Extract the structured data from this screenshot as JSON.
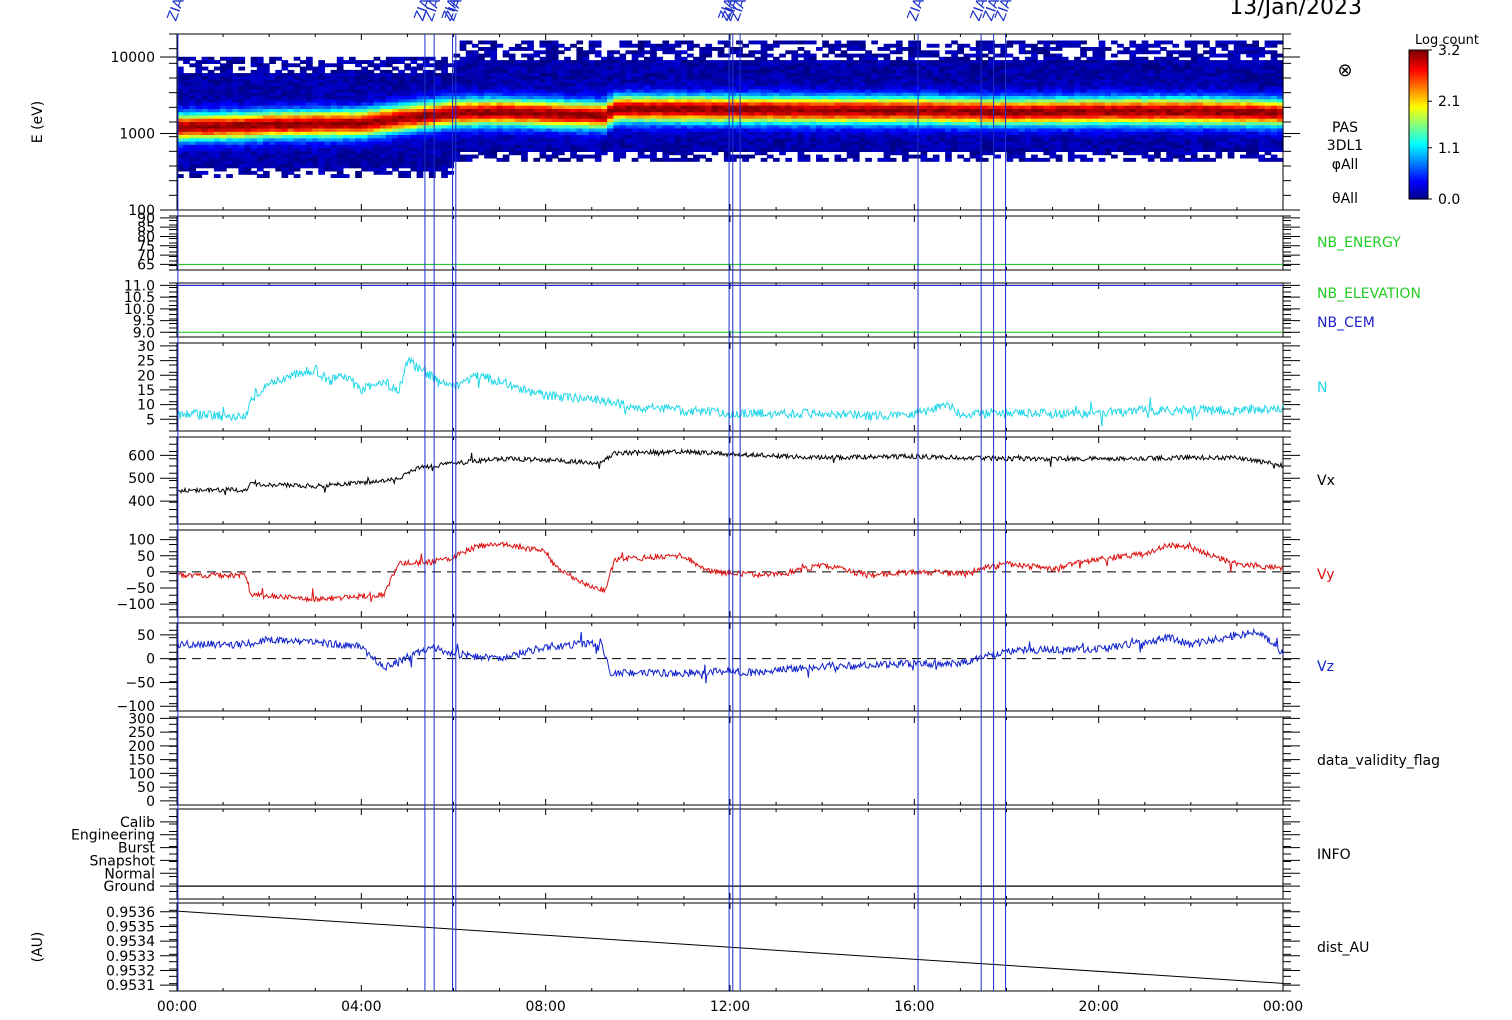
{
  "header": {
    "date": "13/Jan/2023"
  },
  "colorbar": {
    "title": "Log count",
    "ticks": [
      "3.2",
      "2.1",
      "1.1",
      "0.0"
    ]
  },
  "event_markers": [
    {
      "t": 0.02,
      "label": "ZIAS"
    },
    {
      "t": 5.38,
      "label": "ZIAS"
    },
    {
      "t": 5.58,
      "label": "ZIAS"
    },
    {
      "t": 5.98,
      "label": "ZIAS"
    },
    {
      "t": 6.05,
      "label": "ZIAS"
    },
    {
      "t": 11.98,
      "label": "ZIAS"
    },
    {
      "t": 12.06,
      "label": "ZIAS"
    },
    {
      "t": 12.22,
      "label": "ZIAS"
    },
    {
      "t": 16.08,
      "label": "ZIAS"
    },
    {
      "t": 17.45,
      "label": "ZIAS"
    },
    {
      "t": 17.72,
      "label": "ZIAS"
    },
    {
      "t": 17.98,
      "label": "ZIAS"
    }
  ],
  "chart_data": {
    "type": "line",
    "x_axis": {
      "unit": "hours",
      "range": [
        0,
        24
      ],
      "tick_labels": [
        "00:00",
        "04:00",
        "08:00",
        "12:00",
        "16:00",
        "20:00",
        "00:00"
      ],
      "tick_values": [
        0,
        4,
        8,
        12,
        16,
        20,
        24
      ]
    },
    "panels": [
      {
        "id": "spectrogram",
        "type": "heatmap",
        "ylabel": "E (eV)",
        "log_scale": true,
        "ylim": [
          100,
          20000
        ],
        "tick_labels": [
          "10000",
          "1000",
          "100"
        ],
        "tick_values": [
          10000,
          1000,
          100
        ],
        "labels": [
          "PAS",
          "3DL1",
          "φAll",
          "θAll"
        ],
        "colorbar_range": [
          0.0,
          3.2
        ],
        "peak_energy": {
          "t": [
            0,
            1.5,
            2,
            4,
            5,
            6,
            7,
            9.3,
            9.5,
            12,
            14,
            16,
            18,
            20,
            22,
            24
          ],
          "e": [
            1200,
            1250,
            1300,
            1350,
            1600,
            1850,
            1900,
            1700,
            2100,
            2050,
            2000,
            2000,
            1900,
            1950,
            1950,
            1850
          ]
        }
      },
      {
        "id": "nb_energy",
        "ylim": [
          62,
          91
        ],
        "tick_labels": [
          "90",
          "85",
          "80",
          "75",
          "70",
          "65"
        ],
        "tick_values": [
          90,
          85,
          80,
          75,
          70,
          65
        ],
        "series": [
          {
            "name": "NB_ENERGY",
            "color": "#22cc22",
            "level": 65
          }
        ]
      },
      {
        "id": "nb_elev_cem",
        "ylim": [
          8.8,
          11.1
        ],
        "tick_labels": [
          "11.0",
          "10.5",
          "10.0",
          "9.5",
          "9.0"
        ],
        "tick_values": [
          11.0,
          10.5,
          10.0,
          9.5,
          9.0
        ],
        "series": [
          {
            "name": "NB_ELEVATION",
            "color": "#22cc22",
            "level": 9.0
          },
          {
            "name": "NB_CEM",
            "color": "#2222cc",
            "level": 11.0
          }
        ]
      },
      {
        "id": "density",
        "ylim": [
          1,
          31
        ],
        "tick_labels": [
          "30",
          "25",
          "20",
          "15",
          "10",
          "5"
        ],
        "tick_values": [
          30,
          25,
          20,
          15,
          10,
          5
        ],
        "series": [
          {
            "name": "N",
            "color": "#22d8e8",
            "x": [
              0,
              0.2,
              1,
              1.5,
              1.6,
              2,
              2.5,
              3,
              3.3,
              3.6,
              4,
              4.5,
              4.8,
              5.0,
              5.3,
              5.6,
              6,
              6.5,
              7,
              7.5,
              8,
              9,
              10,
              11,
              12,
              13,
              14,
              15,
              16,
              16.3,
              16.6,
              17,
              18,
              19,
              20,
              21,
              22,
              23,
              24
            ],
            "y": [
              6,
              7,
              6,
              6,
              12,
              17,
              20,
              22,
              18,
              20,
              15,
              18,
              14,
              25,
              22,
              19,
              16,
              20,
              18,
              15,
              13,
              12,
              9,
              8,
              7,
              7,
              7,
              6,
              7,
              8,
              10,
              7,
              7,
              7,
              7,
              8,
              8,
              8,
              9
            ],
            "noise": 1.6
          }
        ]
      },
      {
        "id": "vx",
        "ylim": [
          300,
          680
        ],
        "tick_labels": [
          "600",
          "500",
          "400"
        ],
        "tick_values": [
          600,
          500,
          400
        ],
        "series": [
          {
            "name": "Vx",
            "color": "#000000",
            "x": [
              0,
              1.5,
              1.6,
              3,
              4,
              4.8,
              5.2,
              6,
              7,
              8,
              9.2,
              9.5,
              11,
              12,
              14,
              16,
              18,
              20,
              22,
              23,
              24
            ],
            "y": [
              445,
              450,
              475,
              465,
              480,
              495,
              545,
              565,
              585,
              580,
              565,
              610,
              615,
              605,
              590,
              595,
              585,
              585,
              590,
              590,
              555
            ],
            "noise": 10
          }
        ]
      },
      {
        "id": "vy",
        "ylim": [
          -140,
          130
        ],
        "tick_labels": [
          "100",
          "50",
          "0",
          "−50",
          "−100"
        ],
        "tick_values": [
          100,
          50,
          0,
          -50,
          -100
        ],
        "zero_line": true,
        "series": [
          {
            "name": "Vy",
            "color": "#dd1111",
            "x": [
              0,
              1.5,
              1.6,
              3,
              4.5,
              4.8,
              5.5,
              6,
              6.5,
              7,
              7.5,
              8,
              8.2,
              9,
              9.3,
              9.5,
              11,
              11.5,
              12,
              13,
              14,
              15,
              16,
              17,
              18,
              19,
              20,
              21,
              21.5,
              22,
              23,
              24
            ],
            "y": [
              -10,
              -10,
              -70,
              -85,
              -70,
              25,
              30,
              45,
              80,
              85,
              75,
              65,
              15,
              -50,
              -55,
              40,
              50,
              5,
              -5,
              -10,
              20,
              -10,
              0,
              -5,
              25,
              10,
              40,
              55,
              85,
              75,
              25,
              10
            ],
            "noise": 9
          }
        ]
      },
      {
        "id": "vz",
        "ylim": [
          -110,
          75
        ],
        "tick_labels": [
          "50",
          "0",
          "−50",
          "−100"
        ],
        "tick_values": [
          50,
          0,
          -50,
          -100
        ],
        "zero_line": true,
        "series": [
          {
            "name": "Vz",
            "color": "#1122cc",
            "x": [
              0,
              1.5,
              2,
              3,
              4,
              4.5,
              5.5,
              6,
              7,
              8,
              9.2,
              9.4,
              11,
              12,
              12.5,
              14,
              15,
              16,
              17,
              18,
              19,
              20,
              21,
              21.5,
              22,
              23,
              23.5,
              24
            ],
            "y": [
              30,
              30,
              40,
              35,
              25,
              -20,
              25,
              10,
              0,
              25,
              35,
              -30,
              -30,
              -25,
              -30,
              -15,
              -15,
              -10,
              -10,
              15,
              20,
              20,
              35,
              45,
              30,
              50,
              55,
              10
            ],
            "noise": 8
          }
        ]
      },
      {
        "id": "validity",
        "ylim": [
          -15,
          305
        ],
        "tick_labels": [
          "300",
          "250",
          "200",
          "150",
          "100",
          "50",
          "0"
        ],
        "tick_values": [
          300,
          250,
          200,
          150,
          100,
          50,
          0
        ],
        "series": [
          {
            "name": "data_validity_flag",
            "color": "#000000"
          }
        ]
      },
      {
        "id": "info",
        "ylim": [
          0,
          7
        ],
        "tick_labels": [
          "Calib",
          "Engineering",
          "Burst",
          "Snapshot",
          "Normal",
          "Ground"
        ],
        "tick_values": [
          6,
          5,
          4,
          3,
          2,
          1
        ],
        "series": [
          {
            "name": "INFO",
            "color": "#000000",
            "level": 1
          }
        ]
      },
      {
        "id": "distance",
        "ylabel": "(AU)",
        "ylim": [
          0.95306,
          0.95366
        ],
        "tick_labels": [
          "0.9536",
          "0.9535",
          "0.9534",
          "0.9533",
          "0.9532",
          "0.9531"
        ],
        "tick_values": [
          0.9536,
          0.9535,
          0.9534,
          0.9533,
          0.9532,
          0.9531
        ],
        "series": [
          {
            "name": "dist_AU",
            "color": "#000000",
            "x": [
              0,
              24
            ],
            "y": [
              0.953605,
              0.953112
            ]
          }
        ]
      }
    ]
  }
}
